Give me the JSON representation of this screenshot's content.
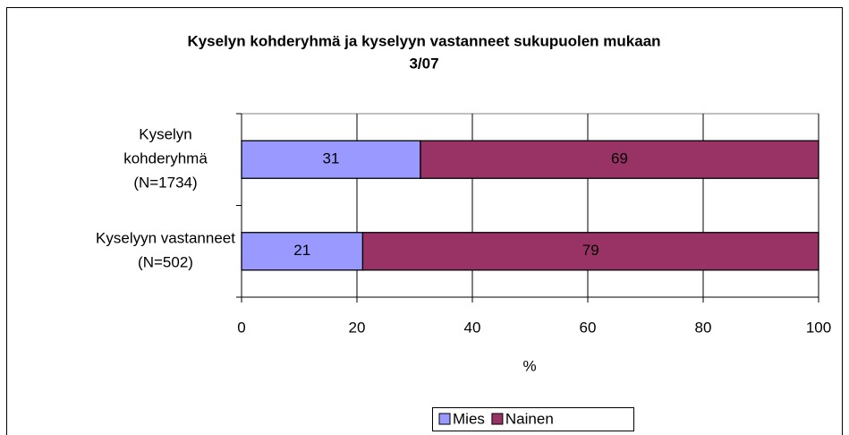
{
  "chart_data": {
    "type": "stacked-barh",
    "title": [
      "Kyselyn kohderyhmä ja kyselyyn vastanneet sukupuolen mukaan",
      "3/07"
    ],
    "categories": [
      [
        "Kyselyn",
        "kohderyhmä",
        "(N=1734)"
      ],
      [
        "Kyselyyn vastanneet",
        "(N=502)"
      ]
    ],
    "series": [
      {
        "name": "Mies",
        "color": "#9999ff",
        "values": [
          31,
          21
        ]
      },
      {
        "name": "Nainen",
        "color": "#993366",
        "values": [
          69,
          79
        ]
      }
    ],
    "xlabel": "%",
    "xlim": [
      0,
      100
    ],
    "xticks": [
      0,
      20,
      40,
      60,
      80,
      100
    ],
    "grid": true,
    "legend": "bottom"
  }
}
